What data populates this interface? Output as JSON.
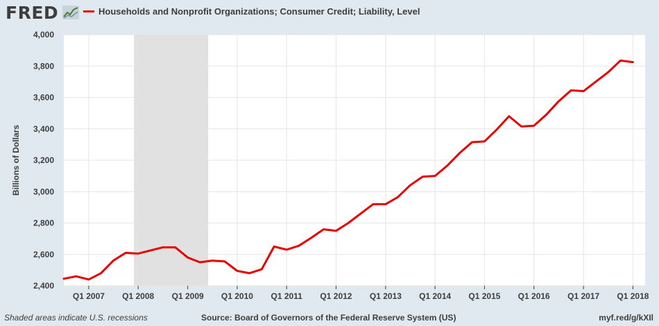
{
  "header": {
    "logo_text": "FRED",
    "logo_icon": "fred-chart-icon"
  },
  "footer": {
    "recession_note": "Shaded areas indicate U.S. recessions",
    "source": "Source: Board of Governors of the Federal Reserve System (US)",
    "url": "myf.red/g/kXIl"
  },
  "colors": {
    "background": "#e1e9f0",
    "plot_background": "#ffffff",
    "series": "#e60000",
    "recession": "#e1e1e1",
    "grid": "#e6e6e6"
  },
  "chart_data": {
    "type": "line",
    "title": "",
    "xlabel": "",
    "ylabel": "Billions of Dollars",
    "ylim": [
      2400,
      4000
    ],
    "yticks": [
      2400,
      2600,
      2800,
      3000,
      3200,
      3400,
      3600,
      3800,
      4000
    ],
    "ytick_labels": [
      "2,400",
      "2,600",
      "2,800",
      "3,000",
      "3,200",
      "3,400",
      "3,600",
      "3,800",
      "4,000"
    ],
    "xlim": [
      "2006-07-01",
      "2018-04-01"
    ],
    "xticks": [
      "2007-01-01",
      "2008-01-01",
      "2009-01-01",
      "2010-01-01",
      "2011-01-01",
      "2012-01-01",
      "2013-01-01",
      "2014-01-01",
      "2015-01-01",
      "2016-01-01",
      "2017-01-01",
      "2018-01-01"
    ],
    "xtick_labels": [
      "Q1 2007",
      "Q1 2008",
      "Q1 2009",
      "Q1 2010",
      "Q1 2011",
      "Q1 2012",
      "Q1 2013",
      "Q1 2014",
      "Q1 2015",
      "Q1 2016",
      "Q1 2017",
      "Q1 2018"
    ],
    "grid": true,
    "legend": "top-left",
    "recessions": [
      {
        "start": "2007-12-01",
        "end": "2009-06-01"
      }
    ],
    "series": [
      {
        "name": "Households and Nonprofit Organizations; Consumer Credit; Liability, Level",
        "x": [
          "2006-07-01",
          "2006-10-01",
          "2007-01-01",
          "2007-04-01",
          "2007-07-01",
          "2007-10-01",
          "2008-01-01",
          "2008-04-01",
          "2008-07-01",
          "2008-10-01",
          "2009-01-01",
          "2009-04-01",
          "2009-07-01",
          "2009-10-01",
          "2010-01-01",
          "2010-04-01",
          "2010-07-01",
          "2010-10-01",
          "2011-01-01",
          "2011-04-01",
          "2011-07-01",
          "2011-10-01",
          "2012-01-01",
          "2012-04-01",
          "2012-07-01",
          "2012-10-01",
          "2013-01-01",
          "2013-04-01",
          "2013-07-01",
          "2013-10-01",
          "2014-01-01",
          "2014-04-01",
          "2014-07-01",
          "2014-10-01",
          "2015-01-01",
          "2015-04-01",
          "2015-07-01",
          "2015-10-01",
          "2016-01-01",
          "2016-04-01",
          "2016-07-01",
          "2016-10-01",
          "2017-01-01",
          "2017-04-01",
          "2017-07-01",
          "2017-10-01",
          "2018-01-01"
        ],
        "values": [
          2445,
          2460,
          2440,
          2480,
          2560,
          2610,
          2605,
          2625,
          2645,
          2645,
          2580,
          2550,
          2560,
          2555,
          2495,
          2480,
          2505,
          2650,
          2630,
          2655,
          2705,
          2760,
          2750,
          2800,
          2860,
          2920,
          2920,
          2965,
          3040,
          3095,
          3100,
          3165,
          3245,
          3315,
          3320,
          3395,
          3480,
          3415,
          3420,
          3490,
          3575,
          3645,
          3640,
          3700,
          3760,
          3835,
          3825
        ]
      }
    ]
  }
}
